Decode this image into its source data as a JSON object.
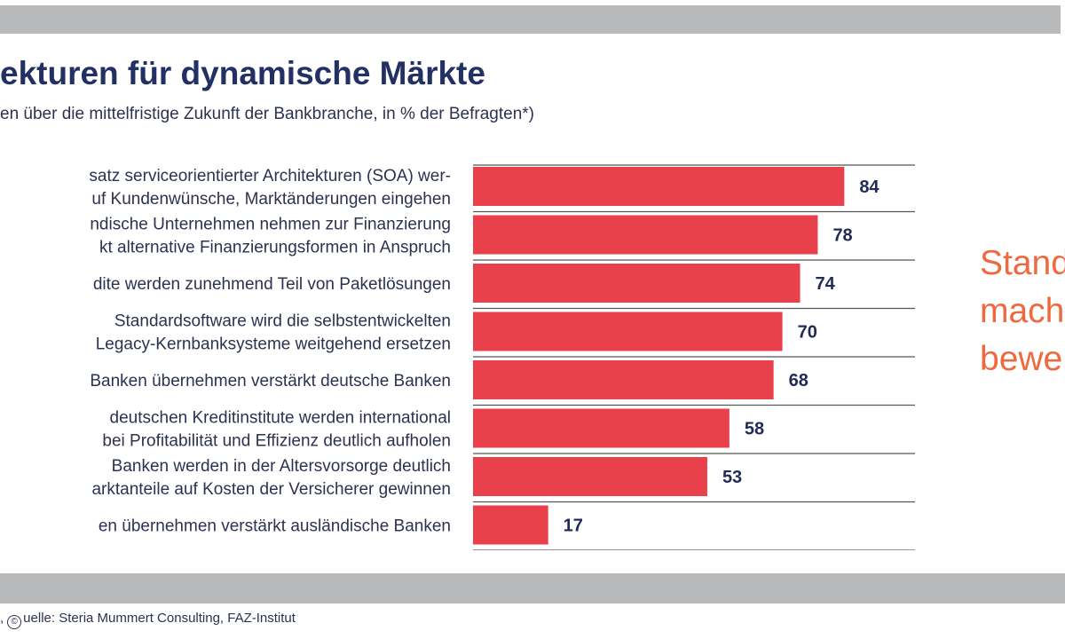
{
  "header": {
    "title": "ekturen für dynamische Märkte",
    "subtitle": "en über die mittelfristige Zukunft der Bankbranche, in % der Befragten*)"
  },
  "side_text": [
    "Stand",
    "mach",
    "bewe"
  ],
  "footer": {
    "source_prefix": ",",
    "copyright_symbol": "©",
    "source": "uelle: Steria Mummert Consulting, FAZ-Institut"
  },
  "colors": {
    "bar": "#e8414c",
    "band": "#b8b9bb",
    "title": "#233063",
    "accent": "#ee6940"
  },
  "chart_data": {
    "type": "bar",
    "orientation": "horizontal",
    "title": "ekturen für dynamische Märkte",
    "subtitle": "en über die mittelfristige Zukunft der Bankbranche, in % der Befragten*)",
    "xlim": [
      0,
      100
    ],
    "unit": "% der Befragten",
    "categories": [
      [
        "satz serviceorientierter Architekturen (SOA) wer-",
        "uf Kundenwünsche, Marktänderungen eingehen"
      ],
      [
        "ndische Unternehmen nehmen zur Finanzierung",
        "kt alternative Finanzierungsformen in Anspruch"
      ],
      [
        "dite werden zunehmend Teil von Paketlösungen"
      ],
      [
        "Standardsoftware wird die selbstentwickelten",
        "Legacy-Kernbanksysteme weitgehend ersetzen"
      ],
      [
        "Banken übernehmen verstärkt deutsche Banken"
      ],
      [
        "deutschen Kreditinstitute werden international",
        "bei Profitabilität und Effizienz deutlich aufholen"
      ],
      [
        "Banken werden in der Altersvorsorge deutlich",
        "arktanteile auf Kosten der Versicherer gewinnen"
      ],
      [
        "en übernehmen verstärkt  ausländische Banken"
      ]
    ],
    "values": [
      84,
      78,
      74,
      70,
      68,
      58,
      53,
      17
    ]
  }
}
